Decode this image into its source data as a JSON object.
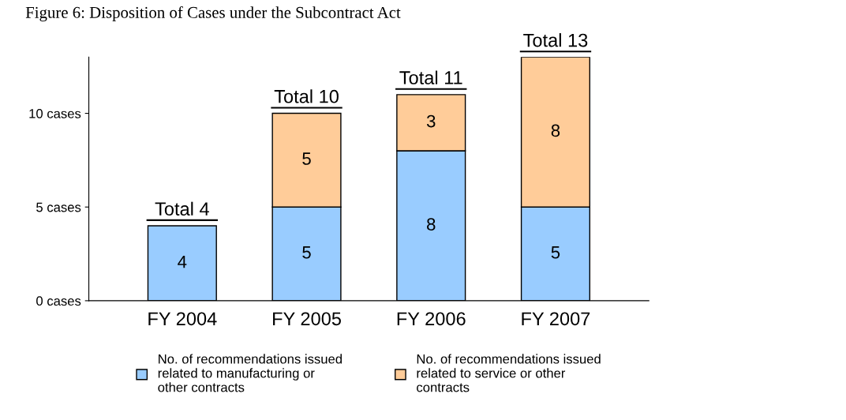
{
  "chart_data": {
    "type": "bar",
    "title": "Figure 6: Disposition of Cases under the Subcontract Act",
    "categories": [
      "FY 2004",
      "FY 2005",
      "FY 2006",
      "FY 2007"
    ],
    "series": [
      {
        "name": "No. of recommendations issued related to manufacturing or other contracts",
        "color": "#99ccff",
        "values": [
          4,
          5,
          8,
          5
        ]
      },
      {
        "name": "No. of recommendations issued related to service or other contracts",
        "color": "#ffcc99",
        "values": [
          null,
          5,
          3,
          8
        ]
      }
    ],
    "stacked": true,
    "data_labels": true,
    "totals": [
      "Total 4",
      "Total 10",
      "Total 11",
      "Total 13"
    ],
    "ylim": [
      0,
      13
    ],
    "yticks": [
      {
        "value": 0,
        "label": "0 cases"
      },
      {
        "value": 5,
        "label": "5 cases"
      },
      {
        "value": 10,
        "label": "10 cases"
      }
    ],
    "grid": false,
    "legend": "bottom"
  }
}
